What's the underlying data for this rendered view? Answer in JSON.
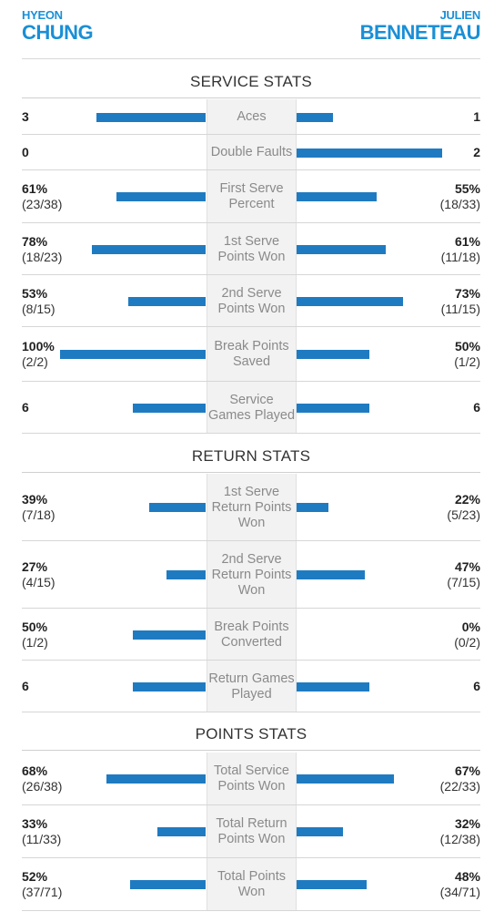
{
  "players": {
    "left": {
      "first": "HYEON",
      "last": "CHUNG"
    },
    "right": {
      "first": "JULIEN",
      "last": "BENNETEAU"
    }
  },
  "colors": {
    "accent": "#1a8fd6",
    "bar": "#1f7bc1"
  },
  "sections": [
    {
      "title": "SERVICE STATS",
      "rows": [
        {
          "label": "Aces",
          "left_main": "3",
          "left_sub": "",
          "right_main": "1",
          "right_sub": "",
          "left_share": 0.75,
          "right_share": 0.25
        },
        {
          "label": "Double Faults",
          "left_main": "0",
          "left_sub": "",
          "right_main": "2",
          "right_sub": "",
          "left_share": 0.0,
          "right_share": 1.0
        },
        {
          "label": "First Serve Percent",
          "left_main": "61%",
          "left_sub": "(23/38)",
          "right_main": "55%",
          "right_sub": "(18/33)",
          "left_share": 0.61,
          "right_share": 0.55
        },
        {
          "label": "1st Serve Points Won",
          "left_main": "78%",
          "left_sub": "(18/23)",
          "right_main": "61%",
          "right_sub": "(11/18)",
          "left_share": 0.78,
          "right_share": 0.61
        },
        {
          "label": "2nd Serve Points Won",
          "left_main": "53%",
          "left_sub": "(8/15)",
          "right_main": "73%",
          "right_sub": "(11/15)",
          "left_share": 0.53,
          "right_share": 0.73
        },
        {
          "label": "Break Points Saved",
          "left_main": "100%",
          "left_sub": "(2/2)",
          "right_main": "50%",
          "right_sub": "(1/2)",
          "left_share": 1.0,
          "right_share": 0.5
        },
        {
          "label": "Service Games Played",
          "left_main": "6",
          "left_sub": "",
          "right_main": "6",
          "right_sub": "",
          "left_share": 0.5,
          "right_share": 0.5
        }
      ]
    },
    {
      "title": "RETURN STATS",
      "rows": [
        {
          "label": "1st Serve Return Points Won",
          "left_main": "39%",
          "left_sub": "(7/18)",
          "right_main": "22%",
          "right_sub": "(5/23)",
          "left_share": 0.39,
          "right_share": 0.22
        },
        {
          "label": "2nd Serve Return Points Won",
          "left_main": "27%",
          "left_sub": "(4/15)",
          "right_main": "47%",
          "right_sub": "(7/15)",
          "left_share": 0.27,
          "right_share": 0.47
        },
        {
          "label": "Break Points Converted",
          "left_main": "50%",
          "left_sub": "(1/2)",
          "right_main": "0%",
          "right_sub": "(0/2)",
          "left_share": 0.5,
          "right_share": 0.0
        },
        {
          "label": "Return Games Played",
          "left_main": "6",
          "left_sub": "",
          "right_main": "6",
          "right_sub": "",
          "left_share": 0.5,
          "right_share": 0.5
        }
      ]
    },
    {
      "title": "POINTS STATS",
      "rows": [
        {
          "label": "Total Service Points Won",
          "left_main": "68%",
          "left_sub": "(26/38)",
          "right_main": "67%",
          "right_sub": "(22/33)",
          "left_share": 0.68,
          "right_share": 0.67
        },
        {
          "label": "Total Return Points Won",
          "left_main": "33%",
          "left_sub": "(11/33)",
          "right_main": "32%",
          "right_sub": "(12/38)",
          "left_share": 0.33,
          "right_share": 0.32
        },
        {
          "label": "Total Points Won",
          "left_main": "52%",
          "left_sub": "(37/71)",
          "right_main": "48%",
          "right_sub": "(34/71)",
          "left_share": 0.52,
          "right_share": 0.48
        }
      ]
    }
  ]
}
